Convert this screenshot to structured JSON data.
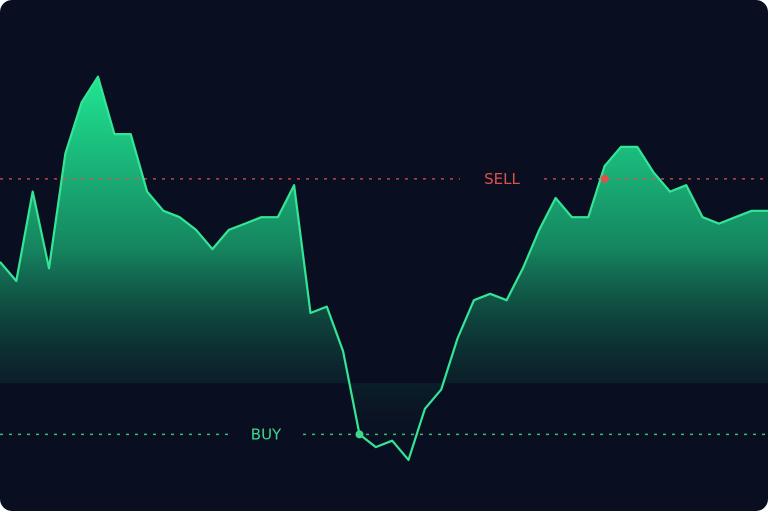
{
  "chart_data": {
    "type": "area",
    "title": "",
    "xlabel": "",
    "ylabel": "",
    "x": [
      0,
      1,
      2,
      3,
      4,
      5,
      6,
      7,
      8,
      9,
      10,
      11,
      12,
      13,
      14,
      15,
      16,
      17,
      18,
      19,
      20,
      21,
      22,
      23,
      24,
      25,
      26,
      27,
      28,
      29,
      30,
      31,
      32,
      33,
      34,
      35,
      36,
      37,
      38,
      39,
      40,
      41,
      42,
      43,
      44,
      45,
      46,
      47
    ],
    "series": [
      {
        "values": [
          49,
          46,
          60,
          48,
          66,
          74,
          78,
          69,
          69,
          60,
          57,
          56,
          54,
          51,
          54,
          55,
          56,
          56,
          61,
          41,
          42,
          35,
          22,
          20,
          21,
          18,
          26,
          29,
          37,
          43,
          44,
          43,
          48,
          54,
          59,
          56,
          56,
          64,
          67,
          67,
          63,
          60,
          61,
          56,
          55,
          56,
          57,
          57
        ]
      }
    ],
    "ylim": [
      10,
      90
    ],
    "grid": false,
    "reference_lines": [
      {
        "label": "SELL",
        "value": 62,
        "color": "#e0504a"
      },
      {
        "label": "BUY",
        "value": 22,
        "color": "#3fd88a"
      }
    ],
    "signals": [
      {
        "type": "buy",
        "x": 22,
        "value": 22
      },
      {
        "type": "sell",
        "x": 37,
        "value": 62
      }
    ],
    "colors": {
      "background": "#090f21",
      "line": "#35e596",
      "area_top": "#1fe592",
      "area_bottom": "#090f21"
    }
  }
}
